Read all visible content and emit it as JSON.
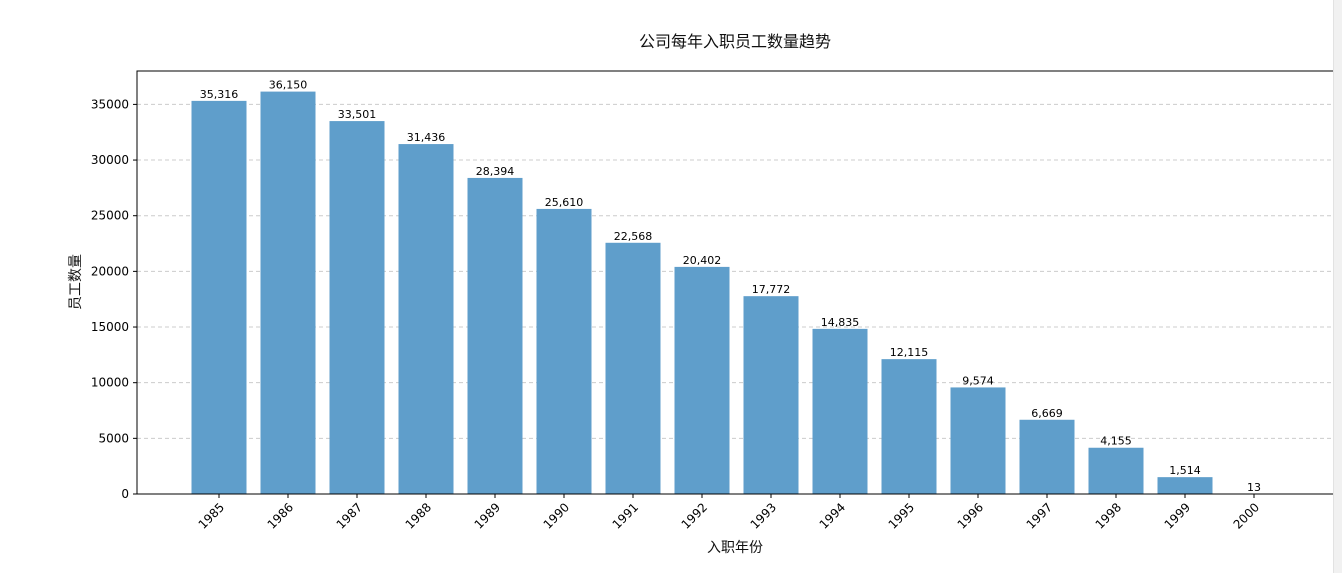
{
  "chart_data": {
    "type": "bar",
    "title": "公司每年入职员工数量趋势",
    "xlabel": "入职年份",
    "ylabel": "员工数量",
    "categories": [
      "1985",
      "1986",
      "1987",
      "1988",
      "1989",
      "1990",
      "1991",
      "1992",
      "1993",
      "1994",
      "1995",
      "1996",
      "1997",
      "1998",
      "1999",
      "2000"
    ],
    "values": [
      35316,
      36150,
      33501,
      31436,
      28394,
      25610,
      22568,
      20402,
      17772,
      14835,
      12115,
      9574,
      6669,
      4155,
      1514,
      13
    ],
    "value_labels": [
      "35,316",
      "36,150",
      "33,501",
      "31,436",
      "28,394",
      "25,610",
      "22,568",
      "20,402",
      "17,772",
      "14,835",
      "12,115",
      "9,574",
      "6,669",
      "4,155",
      "1,514",
      "13"
    ],
    "yticks": [
      0,
      5000,
      10000,
      15000,
      20000,
      25000,
      30000,
      35000
    ],
    "ylim": [
      0,
      38000
    ],
    "grid": "y-dashed",
    "bar_color": "#5f9ecb",
    "axis_color": "#000000",
    "grid_color": "#cccccc"
  }
}
